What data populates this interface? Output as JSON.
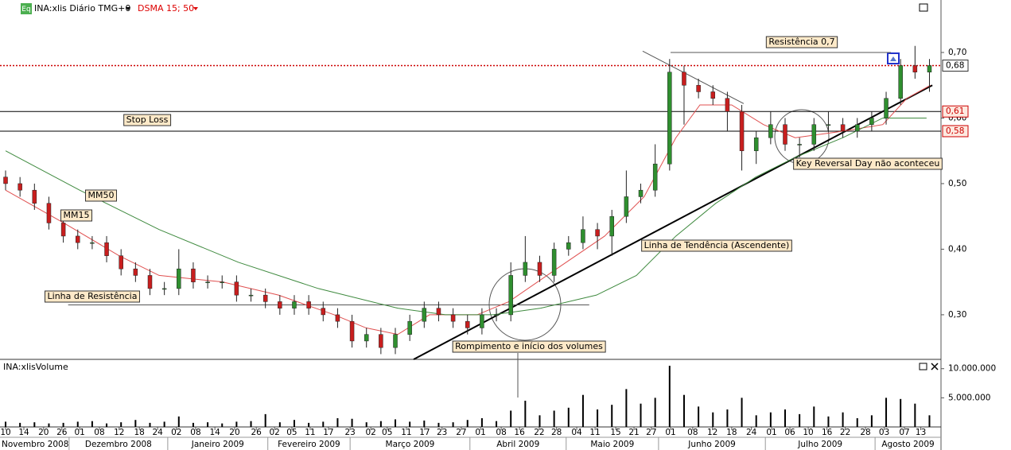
{
  "chart_data": {
    "type": "candlestick",
    "title": "INA:xlis Diário TMG+0",
    "indicator": "DSMA 15; 50",
    "badge": "Eq",
    "volume_title": "INA:xlisVolume",
    "up_color": "#2f8f2f",
    "down_color": "#c81e1e",
    "xlim": [
      -1.16,
      194.4
    ],
    "ylim": [
      0.232,
      0.78
    ],
    "y2lim": [
      0,
      11600000
    ],
    "x": [
      0,
      3,
      6,
      9,
      12,
      15,
      18,
      21,
      24,
      27,
      30,
      33,
      36,
      39,
      42,
      45,
      48,
      51,
      54,
      57,
      60,
      63,
      66,
      69,
      72,
      75,
      78,
      81,
      84,
      87,
      90,
      93,
      96,
      99,
      102,
      105,
      108,
      111,
      114,
      117,
      120,
      123,
      126,
      129,
      132,
      135,
      138,
      141,
      144,
      147,
      150,
      153,
      156,
      159,
      162,
      165,
      168,
      171,
      174,
      177,
      180,
      183,
      186,
      189,
      192
    ],
    "open": [
      0.51,
      0.5,
      0.49,
      0.47,
      0.44,
      0.42,
      0.41,
      0.41,
      0.39,
      0.37,
      0.36,
      0.34,
      0.34,
      0.37,
      0.35,
      0.35,
      0.35,
      0.33,
      0.33,
      0.32,
      0.31,
      0.32,
      0.31,
      0.3,
      0.29,
      0.26,
      0.27,
      0.25,
      0.27,
      0.29,
      0.31,
      0.3,
      0.29,
      0.28,
      0.3,
      0.3,
      0.36,
      0.38,
      0.36,
      0.4,
      0.41,
      0.43,
      0.42,
      0.45,
      0.48,
      0.49,
      0.53,
      0.67,
      0.65,
      0.64,
      0.63,
      0.61,
      0.55,
      0.57,
      0.59,
      0.56,
      0.56,
      0.59,
      0.59,
      0.58,
      0.59,
      0.6,
      0.63,
      0.68,
      0.67
    ],
    "high": [
      0.52,
      0.51,
      0.5,
      0.48,
      0.45,
      0.43,
      0.42,
      0.42,
      0.4,
      0.38,
      0.37,
      0.35,
      0.4,
      0.38,
      0.36,
      0.36,
      0.36,
      0.34,
      0.34,
      0.33,
      0.33,
      0.33,
      0.32,
      0.31,
      0.3,
      0.28,
      0.28,
      0.28,
      0.3,
      0.32,
      0.32,
      0.31,
      0.3,
      0.31,
      0.31,
      0.38,
      0.42,
      0.39,
      0.41,
      0.42,
      0.45,
      0.44,
      0.46,
      0.52,
      0.5,
      0.56,
      0.69,
      0.68,
      0.66,
      0.65,
      0.64,
      0.62,
      0.58,
      0.61,
      0.6,
      0.57,
      0.6,
      0.61,
      0.6,
      0.6,
      0.61,
      0.64,
      0.69,
      0.71,
      0.69
    ],
    "low": [
      0.49,
      0.48,
      0.46,
      0.43,
      0.41,
      0.4,
      0.4,
      0.38,
      0.36,
      0.35,
      0.33,
      0.33,
      0.33,
      0.34,
      0.34,
      0.34,
      0.32,
      0.32,
      0.31,
      0.3,
      0.3,
      0.3,
      0.29,
      0.28,
      0.25,
      0.25,
      0.24,
      0.24,
      0.26,
      0.28,
      0.29,
      0.28,
      0.27,
      0.27,
      0.29,
      0.29,
      0.35,
      0.35,
      0.35,
      0.39,
      0.4,
      0.4,
      0.39,
      0.44,
      0.47,
      0.48,
      0.52,
      0.59,
      0.63,
      0.62,
      0.58,
      0.52,
      0.53,
      0.56,
      0.55,
      0.54,
      0.55,
      0.58,
      0.57,
      0.57,
      0.58,
      0.59,
      0.62,
      0.66,
      0.64
    ],
    "close": [
      0.5,
      0.49,
      0.47,
      0.44,
      0.42,
      0.41,
      0.41,
      0.39,
      0.37,
      0.36,
      0.34,
      0.34,
      0.37,
      0.35,
      0.35,
      0.35,
      0.33,
      0.33,
      0.32,
      0.31,
      0.32,
      0.31,
      0.3,
      0.29,
      0.26,
      0.27,
      0.25,
      0.27,
      0.29,
      0.31,
      0.3,
      0.29,
      0.28,
      0.3,
      0.3,
      0.36,
      0.38,
      0.36,
      0.4,
      0.41,
      0.43,
      0.42,
      0.45,
      0.48,
      0.49,
      0.53,
      0.67,
      0.65,
      0.64,
      0.63,
      0.61,
      0.55,
      0.57,
      0.59,
      0.56,
      0.56,
      0.59,
      0.59,
      0.58,
      0.59,
      0.6,
      0.63,
      0.68,
      0.67,
      0.68
    ],
    "volume": [
      900000,
      700000,
      800000,
      600000,
      700000,
      900000,
      1000000,
      600000,
      800000,
      1200000,
      700000,
      900000,
      1800000,
      700000,
      800000,
      600000,
      900000,
      1000000,
      2200000,
      800000,
      1200000,
      700000,
      900000,
      1500000,
      1400000,
      800000,
      1000000,
      1300000,
      900000,
      1100000,
      700000,
      800000,
      1200000,
      1500000,
      1000000,
      2800000,
      4500000,
      2000000,
      2800000,
      3300000,
      5500000,
      3000000,
      3800000,
      6500000,
      4000000,
      5000000,
      10500000,
      5500000,
      3500000,
      2500000,
      3000000,
      5000000,
      2000000,
      2500000,
      3000000,
      2200000,
      3500000,
      1800000,
      2500000,
      1500000,
      2000000,
      5000000,
      4800000,
      4000000,
      2000000
    ],
    "series": [
      {
        "name": "MM15",
        "color": "#e05050",
        "x": [
          0,
          12.1,
          23.6,
          31.9,
          45.1,
          56.7,
          68.3,
          74.9,
          81.5,
          88.1,
          98.0,
          104.6,
          114.5,
          124.5,
          132.7,
          139.3,
          144.3,
          150.9,
          157.5,
          164.1,
          174.0,
          182.3,
          187.3,
          192.2
        ],
        "values": [
          0.49,
          0.44,
          0.39,
          0.36,
          0.35,
          0.33,
          0.3,
          0.28,
          0.27,
          0.3,
          0.3,
          0.32,
          0.37,
          0.42,
          0.48,
          0.57,
          0.62,
          0.62,
          0.59,
          0.57,
          0.58,
          0.59,
          0.63,
          0.65
        ]
      },
      {
        "name": "MM50",
        "color": "#3f8a3f",
        "x": [
          0,
          15.4,
          31.9,
          48.4,
          65.0,
          81.5,
          91.4,
          101.3,
          111.2,
          122.8,
          131.1,
          139.3,
          147.6,
          155.9,
          164.1,
          174.0,
          182.3,
          191.4
        ],
        "values": [
          0.55,
          0.49,
          0.43,
          0.38,
          0.34,
          0.31,
          0.3,
          0.3,
          0.31,
          0.33,
          0.36,
          0.42,
          0.47,
          0.51,
          0.54,
          0.57,
          0.6,
          0.6
        ]
      }
    ],
    "lines": [
      {
        "x": [
          84.8,
          192.6
        ],
        "values": [
          0.232,
          0.65
        ]
      },
      {
        "x": [
          132.4,
          153.4
        ],
        "values": [
          0.702,
          0.622
        ]
      },
      {
        "x": [
          13,
          121.3
        ],
        "values": [
          0.315,
          0.315
        ]
      },
      {
        "x": [
          138.2,
          184
        ],
        "values": [
          0.7,
          0.7
        ]
      }
    ],
    "levels": [
      {
        "value": 0.68,
        "label": "0,68"
      },
      {
        "value": 0.61,
        "label": "0,61"
      },
      {
        "value": 0.58,
        "label": "0,58"
      }
    ],
    "yticks": [
      {
        "value": 0.7,
        "label": "0,70"
      },
      {
        "value": 0.6,
        "label": "0,60"
      },
      {
        "value": 0.5,
        "label": "0,50"
      },
      {
        "value": 0.4,
        "label": "0,40"
      },
      {
        "value": 0.3,
        "label": "0,30"
      }
    ],
    "y2ticks": [
      {
        "value": 10000000,
        "label": "10.000.000"
      },
      {
        "value": 5000000,
        "label": "5.000.000"
      }
    ],
    "xticks": [
      {
        "value": 0,
        "label": "10"
      },
      {
        "value": 3.8,
        "label": "14"
      },
      {
        "value": 7.9,
        "label": "20"
      },
      {
        "value": 11.7,
        "label": "26"
      },
      {
        "value": 15.4,
        "label": "01"
      },
      {
        "value": 19.5,
        "label": "08"
      },
      {
        "value": 23.6,
        "label": "12"
      },
      {
        "value": 27.8,
        "label": "18"
      },
      {
        "value": 31.6,
        "label": "24"
      },
      {
        "value": 35.5,
        "label": "02"
      },
      {
        "value": 39.5,
        "label": "08"
      },
      {
        "value": 43.5,
        "label": "14"
      },
      {
        "value": 47.6,
        "label": "20"
      },
      {
        "value": 52.1,
        "label": "26"
      },
      {
        "value": 55.9,
        "label": "02"
      },
      {
        "value": 59.5,
        "label": "05"
      },
      {
        "value": 63.3,
        "label": "11"
      },
      {
        "value": 67.1,
        "label": "17"
      },
      {
        "value": 71.6,
        "label": "23"
      },
      {
        "value": 75.9,
        "label": "02"
      },
      {
        "value": 79.3,
        "label": "05"
      },
      {
        "value": 83.3,
        "label": "11"
      },
      {
        "value": 87.1,
        "label": "17"
      },
      {
        "value": 90.7,
        "label": "23"
      },
      {
        "value": 94.7,
        "label": "27"
      },
      {
        "value": 98.7,
        "label": "01"
      },
      {
        "value": 103.0,
        "label": "08"
      },
      {
        "value": 106.8,
        "label": "16"
      },
      {
        "value": 110.9,
        "label": "22"
      },
      {
        "value": 114.5,
        "label": "28"
      },
      {
        "value": 118.7,
        "label": "04"
      },
      {
        "value": 122.5,
        "label": "11"
      },
      {
        "value": 126.8,
        "label": "15"
      },
      {
        "value": 130.6,
        "label": "21"
      },
      {
        "value": 134.2,
        "label": "27"
      },
      {
        "value": 138.2,
        "label": "01"
      },
      {
        "value": 142.8,
        "label": "08"
      },
      {
        "value": 146.9,
        "label": "12"
      },
      {
        "value": 150.9,
        "label": "18"
      },
      {
        "value": 155.0,
        "label": "24"
      },
      {
        "value": 159.2,
        "label": "01"
      },
      {
        "value": 163.0,
        "label": "06"
      },
      {
        "value": 166.8,
        "label": "10"
      },
      {
        "value": 170.7,
        "label": "16"
      },
      {
        "value": 174.5,
        "label": "22"
      },
      {
        "value": 178.7,
        "label": "28"
      },
      {
        "value": 182.6,
        "label": "03"
      },
      {
        "value": 186.8,
        "label": "07"
      },
      {
        "value": 190.2,
        "label": "13"
      }
    ],
    "months": [
      {
        "value": -1.16,
        "label": "Novembro 2008"
      },
      {
        "value": 13.2,
        "label": "Dezembro 2008"
      },
      {
        "value": 33.7,
        "label": "Janeiro 2009"
      },
      {
        "value": 54.5,
        "label": "Fevereiro 2009"
      },
      {
        "value": 71.6,
        "label": "Março 2009"
      },
      {
        "value": 96.5,
        "label": "Abril 2009"
      },
      {
        "value": 116.5,
        "label": "Maio 2009"
      },
      {
        "value": 135.7,
        "label": "Junho 2009"
      },
      {
        "value": 157.9,
        "label": "Julho 2009"
      },
      {
        "value": 180.7,
        "label": "Agosto 2009"
      }
    ],
    "annotations": [
      "Resistência 0,7",
      "Stop Loss",
      "MM50",
      "MM15",
      "Linha de Resistência",
      "Rompimento e início dos volumes",
      "Linha de Tendência (Ascendente)",
      "Key Reversal Day não aconteceu"
    ]
  }
}
